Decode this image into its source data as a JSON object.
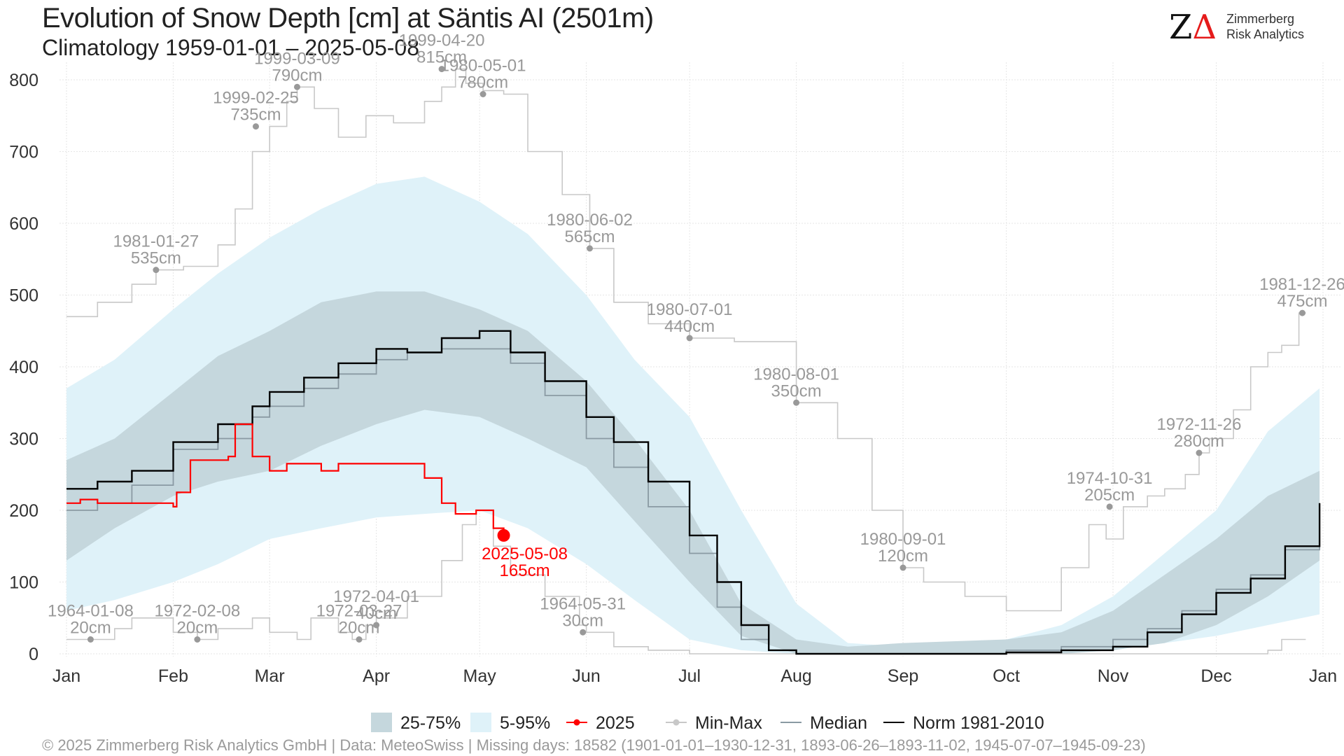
{
  "header": {
    "title": "Evolution of Snow Depth [cm] at Säntis  AI (2501m)",
    "subtitle": "Climatology 1959-01-01 – 2025-05-08"
  },
  "logo": {
    "mark_z": "Z",
    "mark_delta": "Δ",
    "line1": "Zimmerberg",
    "line2": "Risk Analytics"
  },
  "footer": {
    "caption": "©  2025 Zimmerberg Risk Analytics GmbH | Data: MeteoSwiss | Missing days: 18582 (1901-01-01–1930-12-31, 1893-06-26–1893-11-02, 1945-07-07–1945-09-23)"
  },
  "colors": {
    "band_25_75": "#c5d7dd",
    "band_5_95": "#dff2f9",
    "current_year": "#ff0000",
    "min_max": "#c8c8c8",
    "median": "#8a9aa3",
    "norm": "#000000",
    "annotation": "#999999",
    "grid": "#e6e6e6"
  },
  "chart_data": {
    "type": "line",
    "x_unit": "day of year",
    "ylim": [
      0,
      800
    ],
    "yticks": [
      0,
      100,
      200,
      300,
      400,
      500,
      600,
      700,
      800
    ],
    "month_labels": [
      "Jan",
      "Feb",
      "Mar",
      "Apr",
      "May",
      "Jun",
      "Jul",
      "Aug",
      "Sep",
      "Oct",
      "Nov",
      "Dec",
      "Jan"
    ],
    "month_starts": [
      1,
      32,
      60,
      91,
      121,
      152,
      182,
      213,
      244,
      274,
      305,
      335,
      366
    ],
    "grid": true,
    "legend_position": "bottom",
    "legend": [
      "25-75%",
      "5-95%",
      "2025",
      "Min-Max",
      "Median",
      "Norm 1981-2010"
    ],
    "percentile_5_95": {
      "x": [
        1,
        15,
        32,
        45,
        60,
        75,
        91,
        105,
        121,
        135,
        152,
        166,
        182,
        197,
        213,
        228,
        244,
        274,
        290,
        305,
        320,
        335,
        350,
        365
      ],
      "lower": [
        60,
        75,
        100,
        125,
        160,
        175,
        190,
        195,
        200,
        175,
        125,
        75,
        20,
        5,
        0,
        0,
        0,
        0,
        0,
        5,
        15,
        25,
        40,
        55
      ],
      "upper": [
        370,
        410,
        480,
        530,
        580,
        620,
        655,
        665,
        630,
        585,
        500,
        410,
        330,
        200,
        70,
        15,
        10,
        20,
        40,
        80,
        140,
        200,
        310,
        370
      ]
    },
    "percentile_25_75": {
      "x": [
        1,
        15,
        32,
        45,
        60,
        75,
        91,
        105,
        121,
        135,
        152,
        166,
        182,
        197,
        213,
        228,
        244,
        274,
        290,
        305,
        320,
        335,
        350,
        365
      ],
      "lower": [
        130,
        175,
        220,
        240,
        255,
        290,
        320,
        340,
        330,
        300,
        260,
        185,
        100,
        25,
        0,
        0,
        0,
        0,
        0,
        5,
        15,
        40,
        80,
        130
      ],
      "upper": [
        270,
        300,
        365,
        415,
        450,
        490,
        505,
        505,
        480,
        450,
        380,
        300,
        200,
        70,
        20,
        10,
        15,
        20,
        30,
        60,
        110,
        160,
        220,
        255
      ]
    },
    "series": [
      {
        "name": "Norm 1981-2010",
        "x": [
          1,
          10,
          20,
          32,
          45,
          55,
          60,
          70,
          80,
          91,
          100,
          110,
          121,
          130,
          140,
          152,
          160,
          170,
          182,
          190,
          197,
          205,
          213,
          230,
          244,
          274,
          290,
          305,
          315,
          325,
          335,
          345,
          355,
          365
        ],
        "y": [
          230,
          240,
          255,
          295,
          320,
          345,
          365,
          385,
          405,
          425,
          420,
          440,
          450,
          420,
          380,
          330,
          295,
          240,
          165,
          100,
          40,
          5,
          0,
          0,
          0,
          2,
          5,
          10,
          30,
          55,
          85,
          105,
          150,
          210
        ]
      },
      {
        "name": "Median",
        "x": [
          1,
          10,
          20,
          32,
          45,
          55,
          60,
          70,
          80,
          91,
          100,
          110,
          121,
          130,
          140,
          152,
          160,
          170,
          182,
          190,
          197,
          205,
          213,
          230,
          244,
          274,
          290,
          305,
          315,
          325,
          335,
          345,
          355,
          365
        ],
        "y": [
          200,
          210,
          235,
          285,
          300,
          330,
          345,
          370,
          390,
          410,
          420,
          425,
          425,
          405,
          360,
          300,
          260,
          205,
          140,
          65,
          20,
          5,
          0,
          0,
          0,
          5,
          10,
          20,
          35,
          60,
          90,
          110,
          145,
          195
        ]
      },
      {
        "name": "2025",
        "x": [
          1,
          5,
          10,
          15,
          32,
          33,
          37,
          45,
          48,
          50,
          55,
          60,
          65,
          70,
          75,
          80,
          91,
          100,
          105,
          110,
          114,
          120,
          125,
          128
        ],
        "y": [
          210,
          215,
          210,
          210,
          205,
          225,
          270,
          270,
          275,
          320,
          275,
          255,
          265,
          265,
          255,
          265,
          265,
          265,
          245,
          210,
          195,
          200,
          175,
          165
        ]
      },
      {
        "name": "Min-Max (max)",
        "x": [
          1,
          10,
          20,
          27,
          35,
          45,
          50,
          55,
          60,
          65,
          68,
          73,
          80,
          88,
          96,
          105,
          110,
          114,
          117,
          122,
          128,
          135,
          145,
          153,
          160,
          170,
          182,
          195,
          213,
          225,
          235,
          244,
          250,
          262,
          274,
          280,
          290,
          298,
          303,
          308,
          315,
          320,
          326,
          330,
          333,
          340,
          345,
          350,
          354,
          359,
          361
        ],
        "y": [
          470,
          490,
          515,
          535,
          540,
          570,
          620,
          700,
          735,
          770,
          790,
          760,
          720,
          750,
          740,
          770,
          790,
          815,
          795,
          785,
          780,
          700,
          640,
          565,
          490,
          460,
          440,
          435,
          350,
          300,
          200,
          120,
          100,
          80,
          60,
          60,
          120,
          180,
          160,
          205,
          220,
          230,
          250,
          280,
          300,
          340,
          400,
          420,
          430,
          475,
          475
        ]
      },
      {
        "name": "Min-Max (min)",
        "x": [
          1,
          8,
          15,
          20,
          32,
          39,
          45,
          55,
          60,
          68,
          72,
          80,
          84,
          88,
          91,
          100,
          110,
          116,
          120,
          125,
          130,
          140,
          150,
          152,
          160,
          170,
          182,
          213,
          244,
          274,
          305,
          335,
          350,
          354,
          361
        ],
        "y": [
          20,
          20,
          35,
          50,
          30,
          20,
          35,
          50,
          30,
          20,
          50,
          30,
          20,
          40,
          50,
          80,
          130,
          180,
          200,
          150,
          110,
          80,
          40,
          30,
          10,
          5,
          0,
          0,
          0,
          0,
          0,
          0,
          5,
          20,
          20
        ]
      }
    ],
    "current_point": {
      "label": "2025-05-08",
      "value_label": "165cm",
      "x": 128,
      "y": 165
    },
    "annotations": [
      {
        "date": "1999-02-25",
        "value": "735cm",
        "x": 56,
        "y": 735
      },
      {
        "date": "1999-03-09",
        "value": "790cm",
        "x": 68,
        "y": 790
      },
      {
        "date": "1999-04-20",
        "value": "815cm",
        "x": 110,
        "y": 815
      },
      {
        "date": "1980-05-01",
        "value": "780cm",
        "x": 122,
        "y": 780
      },
      {
        "date": "1981-01-27",
        "value": "535cm",
        "x": 27,
        "y": 535
      },
      {
        "date": "1980-06-02",
        "value": "565cm",
        "x": 153,
        "y": 565
      },
      {
        "date": "1980-07-01",
        "value": "440cm",
        "x": 182,
        "y": 440
      },
      {
        "date": "1980-08-01",
        "value": "350cm",
        "x": 213,
        "y": 350
      },
      {
        "date": "1980-09-01",
        "value": "120cm",
        "x": 244,
        "y": 120
      },
      {
        "date": "1974-10-31",
        "value": "205cm",
        "x": 304,
        "y": 205
      },
      {
        "date": "1972-11-26",
        "value": "280cm",
        "x": 330,
        "y": 280
      },
      {
        "date": "1981-12-26",
        "value": "475cm",
        "x": 360,
        "y": 475
      },
      {
        "date": "1964-01-08",
        "value": "20cm",
        "x": 8,
        "y": 20
      },
      {
        "date": "1972-02-08",
        "value": "20cm",
        "x": 39,
        "y": 20
      },
      {
        "date": "1972-03-27",
        "value": "20cm",
        "x": 86,
        "y": 20
      },
      {
        "date": "1972-04-01",
        "value": "40cm",
        "x": 91,
        "y": 40
      },
      {
        "date": "1964-05-31",
        "value": "30cm",
        "x": 151,
        "y": 30
      }
    ]
  }
}
